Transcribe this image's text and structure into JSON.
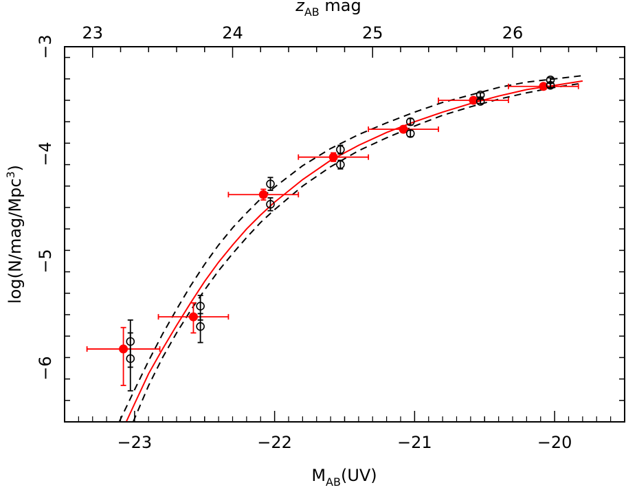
{
  "chart_data": {
    "type": "scatter",
    "xlabel_main": "M",
    "xlabel_sub": "AB",
    "xlabel_tail": "(UV)",
    "ylabel": "log(N/mag/Mpc",
    "ylabel_sup": "3",
    "ylabel_tail": ")",
    "top_label_main": "z",
    "top_label_sub": "AB",
    "top_label_tail": " mag",
    "xlim": [
      -23.5,
      -19.5
    ],
    "ylim": [
      -6.5,
      -3.0
    ],
    "x_ticks": [
      -23,
      -22,
      -21,
      -20
    ],
    "x_tick_labels": [
      "−23",
      "−22",
      "−21",
      "−20"
    ],
    "y_ticks": [
      -6,
      -5,
      -4,
      -3
    ],
    "y_tick_labels": [
      "−6",
      "−5",
      "−4",
      "−3"
    ],
    "top_ticks": [
      23,
      24,
      25,
      26
    ],
    "top_tick_labels": [
      "23",
      "24",
      "25",
      "26"
    ],
    "top_offset": 46.3,
    "colors": {
      "red": "#ff0000",
      "black": "#000000"
    },
    "series": [
      {
        "marker": "filled-circle",
        "color": "#ff0000",
        "points": [
          {
            "x": -23.08,
            "y": -5.82,
            "xerr": 0.26,
            "ylo": 0.34,
            "yhi": 0.2
          },
          {
            "x": -22.58,
            "y": -5.52,
            "xerr": 0.25,
            "ylo": 0.15,
            "yhi": 0.13
          },
          {
            "x": -22.08,
            "y": -4.38,
            "xerr": 0.25,
            "ylo": 0.05,
            "yhi": 0.05
          },
          {
            "x": -21.58,
            "y": -4.03,
            "xerr": 0.25,
            "ylo": 0.04,
            "yhi": 0.04
          },
          {
            "x": -21.08,
            "y": -3.77,
            "xerr": 0.25,
            "ylo": 0.03,
            "yhi": 0.03
          },
          {
            "x": -20.58,
            "y": -3.5,
            "xerr": 0.25,
            "ylo": 0.02,
            "yhi": 0.02
          },
          {
            "x": -20.08,
            "y": -3.37,
            "xerr": 0.25,
            "ylo": 0.02,
            "yhi": 0.02
          }
        ]
      },
      {
        "marker": "open-circle",
        "color": "#000000",
        "points": [
          {
            "x": -23.03,
            "y": -5.75,
            "ylo": 0.24,
            "yhi": 0.2
          },
          {
            "x": -23.03,
            "y": -5.91,
            "ylo": 0.3,
            "yhi": 0.24
          },
          {
            "x": -22.53,
            "y": -5.42,
            "ylo": 0.13,
            "yhi": 0.1
          },
          {
            "x": -22.53,
            "y": -5.61,
            "ylo": 0.15,
            "yhi": 0.12
          },
          {
            "x": -22.03,
            "y": -4.28,
            "ylo": 0.06,
            "yhi": 0.06
          },
          {
            "x": -22.03,
            "y": -4.47,
            "ylo": 0.06,
            "yhi": 0.06
          },
          {
            "x": -21.53,
            "y": -3.96,
            "ylo": 0.04,
            "yhi": 0.04
          },
          {
            "x": -21.53,
            "y": -4.1,
            "ylo": 0.04,
            "yhi": 0.04
          },
          {
            "x": -21.03,
            "y": -3.7,
            "ylo": 0.03,
            "yhi": 0.03
          },
          {
            "x": -21.03,
            "y": -3.81,
            "ylo": 0.03,
            "yhi": 0.03
          },
          {
            "x": -20.53,
            "y": -3.45,
            "ylo": 0.02,
            "yhi": 0.02
          },
          {
            "x": -20.53,
            "y": -3.51,
            "ylo": 0.02,
            "yhi": 0.02
          },
          {
            "x": -20.03,
            "y": -3.31,
            "ylo": 0.02,
            "yhi": 0.02
          },
          {
            "x": -20.03,
            "y": -3.36,
            "ylo": 0.02,
            "yhi": 0.02
          }
        ]
      }
    ],
    "curves": [
      {
        "style": "solid",
        "color": "#ff0000",
        "points": [
          [
            -23.06,
            -6.5
          ],
          [
            -23.0,
            -6.33
          ],
          [
            -22.9,
            -6.05
          ],
          [
            -22.8,
            -5.82
          ],
          [
            -22.7,
            -5.6
          ],
          [
            -22.6,
            -5.39
          ],
          [
            -22.5,
            -5.19
          ],
          [
            -22.4,
            -5.01
          ],
          [
            -22.3,
            -4.85
          ],
          [
            -22.2,
            -4.7
          ],
          [
            -22.1,
            -4.57
          ],
          [
            -22.0,
            -4.45
          ],
          [
            -21.8,
            -4.24
          ],
          [
            -21.6,
            -4.06
          ],
          [
            -21.4,
            -3.92
          ],
          [
            -21.2,
            -3.8
          ],
          [
            -21.0,
            -3.7
          ],
          [
            -20.8,
            -3.61
          ],
          [
            -20.6,
            -3.53
          ],
          [
            -20.4,
            -3.46
          ],
          [
            -20.2,
            -3.4
          ],
          [
            -20.0,
            -3.36
          ],
          [
            -19.8,
            -3.32
          ]
        ]
      },
      {
        "style": "dashed",
        "color": "#000000",
        "points": [
          [
            -23.11,
            -6.5
          ],
          [
            -23.0,
            -6.2
          ],
          [
            -22.9,
            -5.93
          ],
          [
            -22.8,
            -5.68
          ],
          [
            -22.7,
            -5.45
          ],
          [
            -22.6,
            -5.23
          ],
          [
            -22.5,
            -5.03
          ],
          [
            -22.4,
            -4.85
          ],
          [
            -22.3,
            -4.69
          ],
          [
            -22.2,
            -4.55
          ],
          [
            -22.1,
            -4.42
          ],
          [
            -22.0,
            -4.31
          ],
          [
            -21.8,
            -4.11
          ],
          [
            -21.6,
            -3.95
          ],
          [
            -21.4,
            -3.82
          ],
          [
            -21.2,
            -3.71
          ],
          [
            -21.0,
            -3.61
          ],
          [
            -20.8,
            -3.52
          ],
          [
            -20.6,
            -3.45
          ],
          [
            -20.4,
            -3.38
          ],
          [
            -20.2,
            -3.33
          ],
          [
            -20.0,
            -3.3
          ],
          [
            -19.8,
            -3.27
          ]
        ]
      },
      {
        "style": "dashed",
        "color": "#000000",
        "points": [
          [
            -23.01,
            -6.5
          ],
          [
            -22.9,
            -6.16
          ],
          [
            -22.8,
            -5.9
          ],
          [
            -22.7,
            -5.67
          ],
          [
            -22.6,
            -5.46
          ],
          [
            -22.5,
            -5.27
          ],
          [
            -22.4,
            -5.09
          ],
          [
            -22.3,
            -4.93
          ],
          [
            -22.2,
            -4.78
          ],
          [
            -22.1,
            -4.64
          ],
          [
            -22.0,
            -4.52
          ],
          [
            -21.8,
            -4.3
          ],
          [
            -21.6,
            -4.12
          ],
          [
            -21.4,
            -3.97
          ],
          [
            -21.2,
            -3.85
          ],
          [
            -21.0,
            -3.74
          ],
          [
            -20.8,
            -3.64
          ],
          [
            -20.6,
            -3.56
          ],
          [
            -20.4,
            -3.49
          ],
          [
            -20.2,
            -3.43
          ],
          [
            -20.0,
            -3.38
          ],
          [
            -19.8,
            -3.34
          ]
        ]
      }
    ]
  }
}
